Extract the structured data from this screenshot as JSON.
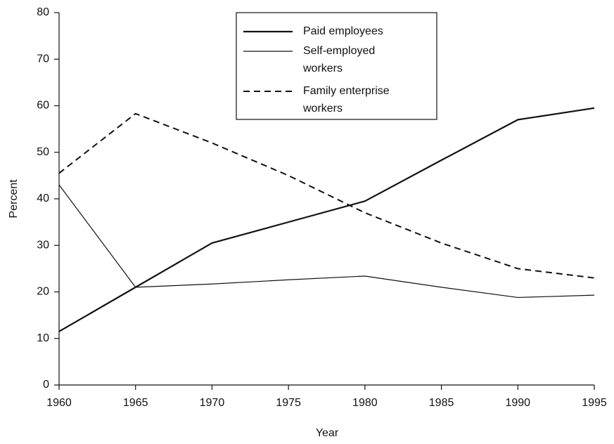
{
  "chart_data": {
    "type": "line",
    "x_label": "Year",
    "y_label": "Percent",
    "x": [
      1960,
      1965,
      1970,
      1975,
      1980,
      1985,
      1990,
      1995
    ],
    "series": [
      {
        "name": "Paid employees",
        "color": "#111111",
        "style": "solid",
        "width": 2.2,
        "values": [
          11.5,
          21,
          30.5,
          35,
          39.5,
          48.3,
          57,
          59.5
        ]
      },
      {
        "name": "Self-employed workers",
        "color": "#111111",
        "style": "solid",
        "width": 1.2,
        "values": [
          43,
          21,
          21.7,
          22.6,
          23.4,
          21,
          18.8,
          19.3
        ]
      },
      {
        "name": "Family enterprise workers",
        "color": "#111111",
        "style": "dashed",
        "width": 2,
        "values": [
          45.5,
          58.3,
          52,
          45,
          37,
          30.5,
          25,
          23
        ]
      }
    ],
    "xlim": [
      1960,
      1995
    ],
    "xticks": [
      1960,
      1965,
      1970,
      1975,
      1980,
      1985,
      1990,
      1995
    ],
    "ylim": [
      0,
      80
    ],
    "yticks": [
      0,
      10,
      20,
      30,
      40,
      50,
      60,
      70,
      80
    ],
    "grid": false,
    "legend": "top"
  }
}
